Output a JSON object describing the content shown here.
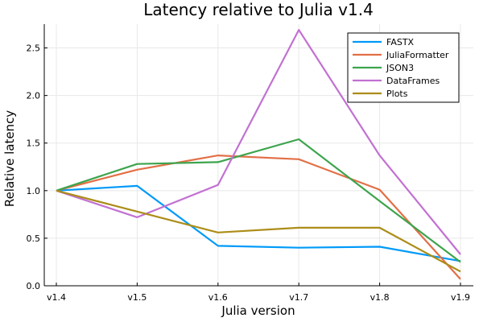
{
  "chart_data": {
    "type": "line",
    "title": "Latency relative to Julia v1.4",
    "xlabel": "Julia version",
    "ylabel": "Relative latency",
    "categories": [
      "v1.4",
      "v1.5",
      "v1.6",
      "v1.7",
      "v1.8",
      "v1.9"
    ],
    "ylim": [
      0,
      2.75
    ],
    "yticks": [
      0.0,
      0.5,
      1.0,
      1.5,
      2.0,
      2.5
    ],
    "ytick_labels": [
      "0.0",
      "0.5",
      "1.0",
      "1.5",
      "2.0",
      "2.5"
    ],
    "grid": true,
    "legend_position": "top-right",
    "series": [
      {
        "name": "FASTX",
        "color": "#009af9",
        "values": [
          1.0,
          1.05,
          0.42,
          0.4,
          0.41,
          0.26
        ]
      },
      {
        "name": "JuliaFormatter",
        "color": "#e26f46",
        "values": [
          1.0,
          1.22,
          1.37,
          1.33,
          1.01,
          0.07
        ]
      },
      {
        "name": "JSON3",
        "color": "#3da44d",
        "values": [
          1.0,
          1.28,
          1.3,
          1.54,
          0.89,
          0.25
        ]
      },
      {
        "name": "DataFrames",
        "color": "#c271d2",
        "values": [
          1.0,
          0.72,
          1.06,
          2.69,
          1.37,
          0.33
        ]
      },
      {
        "name": "Plots",
        "color": "#ac8d18",
        "values": [
          1.0,
          0.78,
          0.56,
          0.61,
          0.61,
          0.15
        ]
      }
    ]
  }
}
